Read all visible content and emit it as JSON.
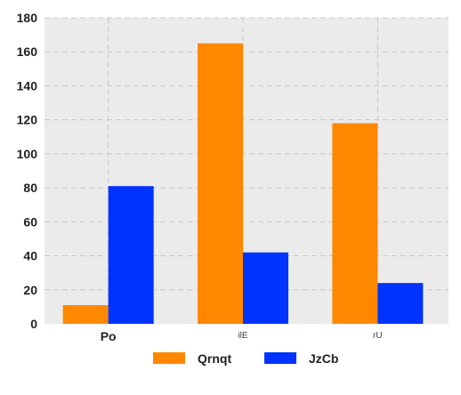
{
  "chart_data": {
    "type": "bar",
    "categories": [
      "Po",
      "ilE",
      "rU"
    ],
    "series": [
      {
        "name": "Qrnqt",
        "values": [
          11,
          165,
          118
        ],
        "color": "#ff8800"
      },
      {
        "name": "JzCb",
        "values": [
          81,
          42,
          24
        ],
        "color": "#0033ff"
      }
    ],
    "ylim": [
      0,
      180
    ],
    "yticks": [
      0,
      20,
      40,
      60,
      80,
      100,
      120,
      140,
      160,
      180
    ],
    "ytick_labels": [
      "0",
      "20",
      "40",
      "60",
      "80",
      "100",
      "120",
      "140",
      "160",
      "180"
    ],
    "grid": true,
    "grid_style": "dashed",
    "plot_background": "#ebebeb",
    "legend_position": "bottom-center",
    "title": "",
    "xlabel": "",
    "ylabel": ""
  }
}
